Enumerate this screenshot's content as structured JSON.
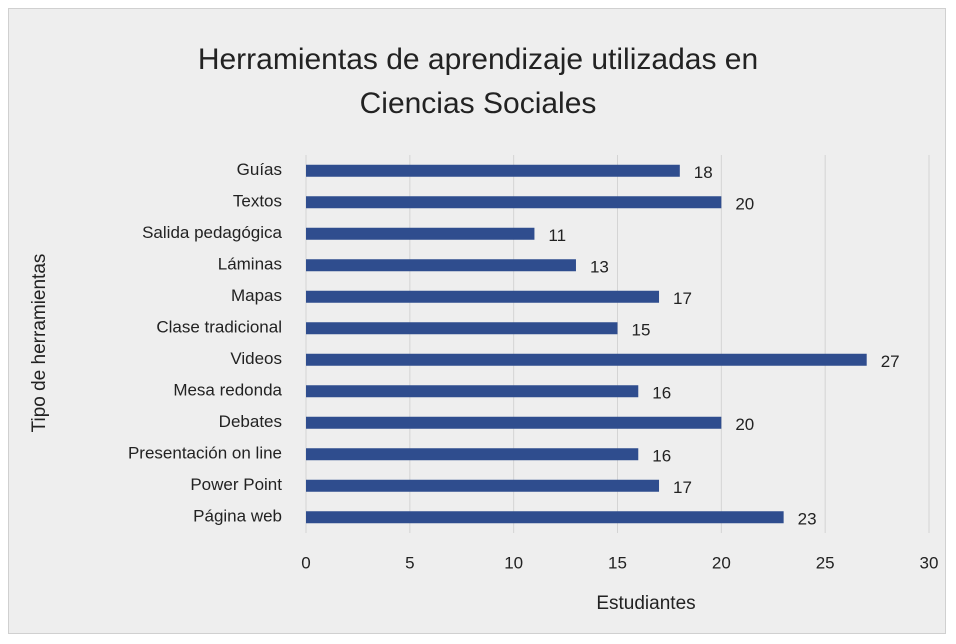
{
  "chart_data": {
    "type": "bar",
    "orientation": "horizontal",
    "title": "Herramientas de aprendizaje utilizadas en Ciencias Sociales",
    "x_label": "Estudiantes",
    "y_label": "Tipo de herramientas",
    "categories": [
      "Guías",
      "Textos",
      "Salida pedagógica",
      "Láminas",
      "Mapas",
      "Clase tradicional",
      "Videos",
      "Mesa redonda",
      "Debates",
      "Presentación on line",
      "Power Point",
      "Página web"
    ],
    "values": [
      18,
      20,
      11,
      13,
      17,
      15,
      27,
      16,
      20,
      16,
      17,
      23
    ],
    "color": "#2f4d8e",
    "xlim": [
      0,
      30
    ],
    "xticks": [
      0,
      5,
      10,
      15,
      20,
      25,
      30
    ],
    "grid": true
  }
}
